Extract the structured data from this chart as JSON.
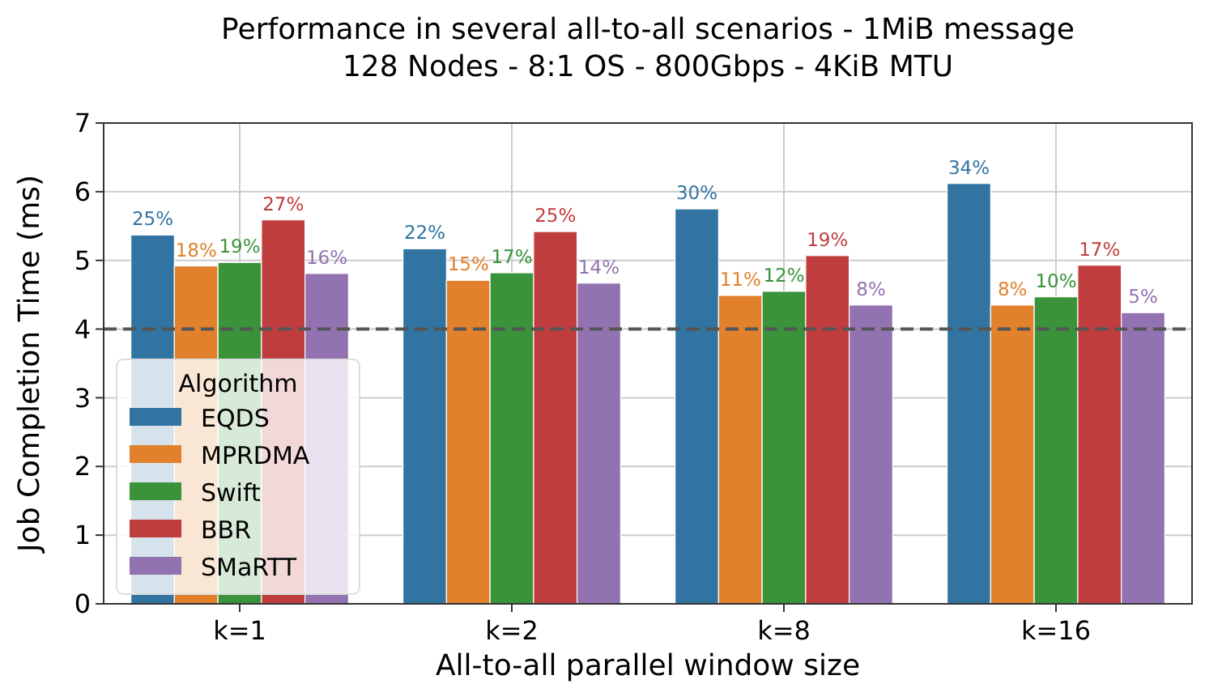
{
  "chart_data": {
    "type": "bar",
    "title": "Performance in several all-to-all scenarios - 1MiB message\n128 Nodes - 8:1 OS - 800Gbps - 4KiB MTU",
    "xlabel": "All-to-all parallel window size",
    "ylabel": "Job Completion Time (ms)",
    "legend_title": "Algorithm",
    "categories": [
      "k=1",
      "k=2",
      "k=8",
      "k=16"
    ],
    "series": [
      {
        "name": "EQDS",
        "color": "#3274a1",
        "values": [
          5.37,
          5.17,
          5.75,
          6.12
        ]
      },
      {
        "name": "MPRDMA",
        "color": "#e1812c",
        "values": [
          4.92,
          4.71,
          4.49,
          4.35
        ]
      },
      {
        "name": "Swift",
        "color": "#3a923a",
        "values": [
          4.97,
          4.82,
          4.55,
          4.47
        ]
      },
      {
        "name": "BBR",
        "color": "#c03d3e",
        "values": [
          5.59,
          5.42,
          5.07,
          4.93
        ]
      },
      {
        "name": "SMaRTT",
        "color": "#9372b2",
        "values": [
          4.81,
          4.67,
          4.35,
          4.24
        ]
      }
    ],
    "annotations": [
      "25%",
      "18%",
      "19%",
      "27%",
      "16%",
      "22%",
      "15%",
      "17%",
      "25%",
      "14%",
      "30%",
      "11%",
      "12%",
      "19%",
      "8%",
      "34%",
      "8%",
      "10%",
      "17%",
      "5%"
    ],
    "ylim": [
      0,
      7
    ],
    "yticks": [
      0,
      1,
      2,
      3,
      4,
      5,
      6,
      7
    ],
    "grid": true,
    "legend": "bottom left",
    "ref_lines": [
      {
        "axis": "y",
        "value": 4,
        "color": "#555555",
        "line_style": "dashed"
      }
    ]
  }
}
